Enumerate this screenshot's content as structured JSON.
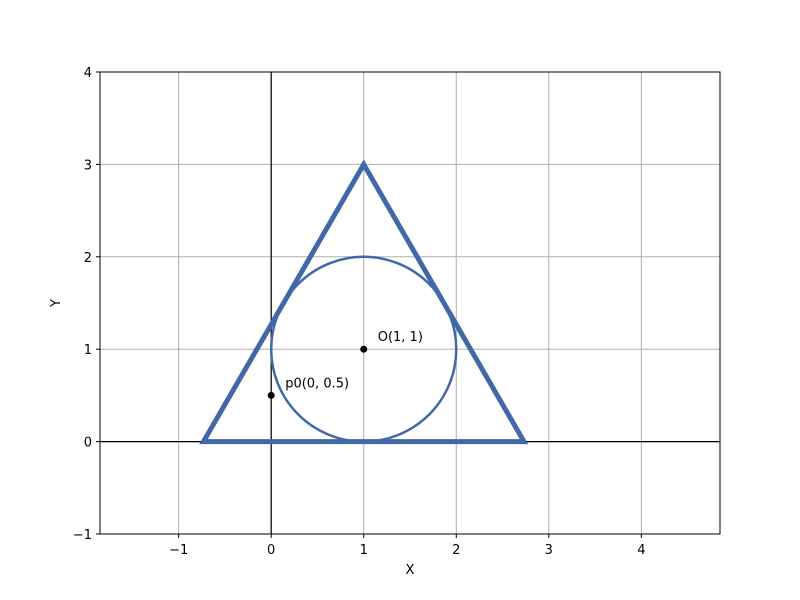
{
  "chart_data": {
    "type": "scatter",
    "title": "",
    "xlabel": "X",
    "ylabel": "Y",
    "xlim": [
      -1.85,
      4.85
    ],
    "ylim": [
      -1,
      4
    ],
    "xticks": [
      -1,
      0,
      1,
      2,
      3,
      4
    ],
    "yticks": [
      -1,
      0,
      1,
      2,
      3,
      4
    ],
    "xtick_labels": [
      "−1",
      "0",
      "1",
      "2",
      "3",
      "4"
    ],
    "ytick_labels": [
      "−1",
      "0",
      "1",
      "2",
      "3",
      "4"
    ],
    "grid": true,
    "reference_lines": {
      "x": 0,
      "y": 0
    },
    "colors": {
      "shape": "#4169a8",
      "point": "#000000",
      "grid": "#b0b0b0"
    },
    "triangle": {
      "vertices": [
        [
          -0.732,
          0
        ],
        [
          2.732,
          0
        ],
        [
          1,
          3
        ]
      ]
    },
    "circle": {
      "center": [
        1,
        1
      ],
      "radius": 1
    },
    "points": [
      {
        "x": 1,
        "y": 1,
        "label": "O(1, 1)"
      },
      {
        "x": 0,
        "y": 0.5,
        "label": "p0(0, 0.5)"
      }
    ]
  }
}
